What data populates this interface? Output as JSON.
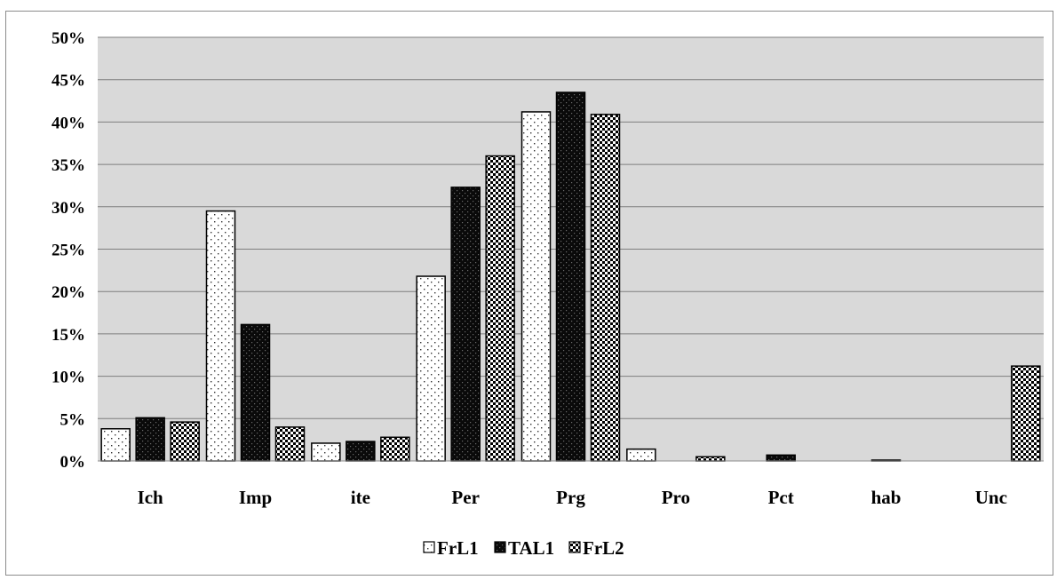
{
  "chart_data": {
    "type": "bar",
    "categories": [
      "Ich",
      "Imp",
      "ite",
      "Per",
      "Prg",
      "Pro",
      "Pct",
      "hab",
      "Unc"
    ],
    "series": [
      {
        "name": "FrL1",
        "pattern": "sparse-dots",
        "values": [
          3.8,
          29.5,
          2.1,
          21.8,
          41.2,
          1.4,
          0.0,
          0.0,
          0.0
        ]
      },
      {
        "name": "TAL1",
        "pattern": "dark-dots",
        "values": [
          5.1,
          16.1,
          2.3,
          32.3,
          43.5,
          0.0,
          0.7,
          0.05,
          0.0
        ]
      },
      {
        "name": "FrL2",
        "pattern": "checker",
        "values": [
          4.6,
          4.0,
          2.8,
          36.0,
          40.9,
          0.5,
          0.0,
          0.0,
          11.2
        ]
      }
    ],
    "ylim": [
      0,
      50
    ],
    "yticks": [
      "0%",
      "5%",
      "10%",
      "15%",
      "20%",
      "25%",
      "30%",
      "35%",
      "40%",
      "45%",
      "50%"
    ],
    "grid": true,
    "legend_position": "bottom",
    "plot_background": "#d9d9d9",
    "title": "",
    "xlabel": "",
    "ylabel": ""
  }
}
